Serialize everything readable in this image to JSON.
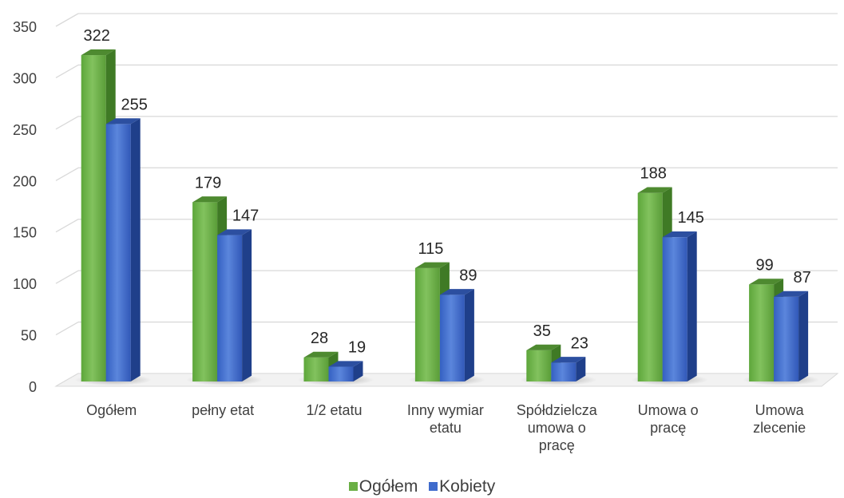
{
  "chart_data": {
    "type": "bar",
    "categories": [
      [
        "Ogółem"
      ],
      [
        "pełny etat"
      ],
      [
        "1/2 etatu"
      ],
      [
        "Inny wymiar",
        "etatu"
      ],
      [
        "Spółdzielcza",
        "umowa o",
        "pracę"
      ],
      [
        "Umowa o",
        "pracę"
      ],
      [
        "Umowa",
        "zlecenie"
      ]
    ],
    "series": [
      {
        "name": "Ogółem",
        "values": [
          322,
          179,
          28,
          115,
          35,
          188,
          99
        ]
      },
      {
        "name": "Kobiety",
        "values": [
          255,
          147,
          19,
          89,
          23,
          145,
          87
        ]
      }
    ],
    "yticks": [
      0,
      50,
      100,
      150,
      200,
      250,
      300,
      350
    ],
    "ylim": [
      0,
      350
    ],
    "grid": true,
    "legend_position": "bottom",
    "colors": {
      "ogolem": "#6aaf45",
      "ogolem_side": "#3f7a25",
      "ogolem_top": "#4e8a30",
      "kobiety": "#3f6bcc",
      "kobiety_side": "#1f3f8a",
      "kobiety_top": "#2c4fa0"
    }
  },
  "legend": {
    "items": [
      {
        "label": "Ogółem",
        "color": "#6aaf45"
      },
      {
        "label": "Kobiety",
        "color": "#3f6bcc"
      }
    ]
  }
}
